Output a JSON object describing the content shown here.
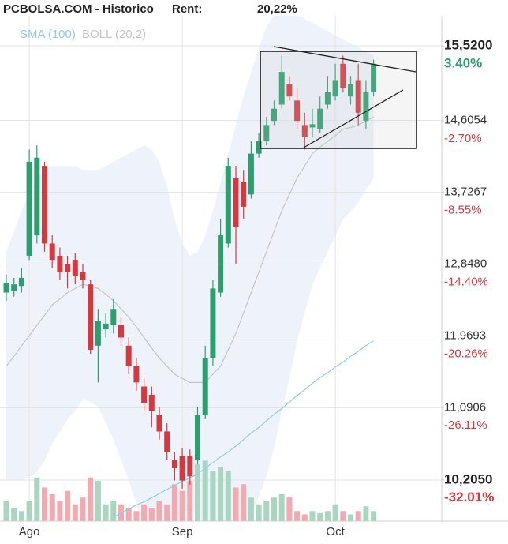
{
  "chart_data": {
    "type": "candlestick",
    "title": "PCBOLSA.COM - Historico",
    "rent_label": "Rent:",
    "rent_value": "20,22%",
    "categories": [
      null,
      null,
      null,
      "Ago",
      null,
      null,
      null,
      null,
      null,
      null,
      null,
      null,
      null,
      null,
      null,
      null,
      null,
      null,
      null,
      null,
      null,
      null,
      null,
      "Sep",
      null,
      null,
      null,
      null,
      null,
      null,
      null,
      null,
      null,
      null,
      null,
      null,
      null,
      null,
      null,
      null,
      null,
      null,
      null,
      "Oct",
      null,
      null,
      null,
      null,
      null
    ],
    "open": [
      12.5,
      12.52,
      12.58,
      12.95,
      13.2,
      14.05,
      13.1,
      12.95,
      12.85,
      12.9,
      12.75,
      12.6,
      11.85,
      12.05,
      12.1,
      12.1,
      11.85,
      11.6,
      11.35,
      11.25,
      11.0,
      10.8,
      10.45,
      10.5,
      10.5,
      10.45,
      11.0,
      11.7,
      12.5,
      13.1,
      13.9,
      13.85,
      13.7,
      14.2,
      14.35,
      14.6,
      14.8,
      15.05,
      14.85,
      14.55,
      14.52,
      14.5,
      14.8,
      14.9,
      15.3,
      14.9,
      15.1,
      14.6,
      14.95
    ],
    "high": [
      12.72,
      12.68,
      12.8,
      14.25,
      14.3,
      14.1,
      13.2,
      13.05,
      12.95,
      12.98,
      12.85,
      12.65,
      12.3,
      12.25,
      12.42,
      12.2,
      11.95,
      11.7,
      11.45,
      11.35,
      11.1,
      10.9,
      10.55,
      10.6,
      10.58,
      11.1,
      11.85,
      12.65,
      13.4,
      14.15,
      14.05,
      14.0,
      14.35,
      14.45,
      14.65,
      14.85,
      15.4,
      15.15,
      15.0,
      14.7,
      14.75,
      14.9,
      15.15,
      15.3,
      15.4,
      15.15,
      15.3,
      15.1,
      15.35
    ],
    "low": [
      12.4,
      12.45,
      12.5,
      12.9,
      13.1,
      13.0,
      12.8,
      12.65,
      12.55,
      12.6,
      12.55,
      11.75,
      11.4,
      11.95,
      12.0,
      11.85,
      11.5,
      11.3,
      11.05,
      10.85,
      10.7,
      10.45,
      10.2,
      10.1,
      10.15,
      10.4,
      10.95,
      11.6,
      12.45,
      13.05,
      12.85,
      13.4,
      13.65,
      14.15,
      14.3,
      14.55,
      14.75,
      14.85,
      14.5,
      14.25,
      14.4,
      14.45,
      14.75,
      14.85,
      14.95,
      14.8,
      14.55,
      14.5,
      14.9
    ],
    "close": [
      12.62,
      12.6,
      12.68,
      14.1,
      14.15,
      13.1,
      12.9,
      12.75,
      12.75,
      12.7,
      12.65,
      11.8,
      12.15,
      12.12,
      12.3,
      11.95,
      11.6,
      11.4,
      11.15,
      11.05,
      10.8,
      10.55,
      10.35,
      10.2,
      10.25,
      11.0,
      11.7,
      12.55,
      13.2,
      14.05,
      13.3,
      13.55,
      14.2,
      14.35,
      14.55,
      14.75,
      15.2,
      14.9,
      14.6,
      14.4,
      14.56,
      14.75,
      14.95,
      15.1,
      15.0,
      15.05,
      14.7,
      14.95,
      15.3
    ],
    "volume": [
      30,
      20,
      15,
      30,
      65,
      50,
      40,
      30,
      45,
      25,
      35,
      65,
      60,
      25,
      30,
      25,
      20,
      15,
      25,
      20,
      30,
      25,
      55,
      45,
      60,
      85,
      90,
      75,
      80,
      75,
      50,
      55,
      35,
      25,
      30,
      35,
      40,
      35,
      15,
      10,
      15,
      12,
      15,
      25,
      15,
      10,
      15,
      22,
      15
    ],
    "up_color": "#2e9e6e",
    "down_color": "#d23a40",
    "up_volume_color": "#a9d5c1",
    "down_volume_color": "#f2aab0",
    "indicators": [
      {
        "name": "SMA (100)",
        "color": "#8fcbee",
        "values": [
          null,
          null,
          null,
          null,
          null,
          null,
          null,
          null,
          null,
          null,
          null,
          null,
          null,
          null,
          9.75,
          9.8,
          9.85,
          9.9,
          9.94,
          9.99,
          10.04,
          10.09,
          10.14,
          10.19,
          10.23,
          10.28,
          10.35,
          10.42,
          10.49,
          10.55,
          10.62,
          10.7,
          10.78,
          10.85,
          10.93,
          11.01,
          11.08,
          11.16,
          11.24,
          11.31,
          11.39,
          11.46,
          11.52,
          11.59,
          11.65,
          11.72,
          11.78,
          11.85,
          11.91
        ]
      },
      {
        "name": "BOLL (20,2)",
        "color": "#c4c4c4",
        "band_color": "#eef3fb",
        "values": [
          11.6,
          11.72,
          11.85,
          11.97,
          12.1,
          12.22,
          12.35,
          12.42,
          12.5,
          12.55,
          12.6,
          12.58,
          12.55,
          12.48,
          12.4,
          12.3,
          12.2,
          12.08,
          11.95,
          11.82,
          11.7,
          11.6,
          11.5,
          11.45,
          11.4,
          11.4,
          11.4,
          11.5,
          11.6,
          11.8,
          12.0,
          12.25,
          12.5,
          12.75,
          13.0,
          13.25,
          13.5,
          13.7,
          13.9,
          14.05,
          14.2,
          14.28,
          14.35,
          14.42,
          14.5,
          14.52,
          14.55,
          14.6,
          14.65
        ],
        "upper": [
          13.0,
          13.25,
          13.5,
          13.7,
          13.9,
          14.0,
          14.05,
          14.05,
          14.05,
          14.05,
          14.0,
          14.0,
          14.0,
          14.05,
          14.1,
          14.15,
          14.2,
          14.25,
          14.3,
          14.25,
          14.1,
          13.8,
          13.4,
          13.1,
          12.95,
          13.0,
          13.2,
          13.5,
          13.85,
          14.2,
          14.55,
          14.9,
          15.2,
          15.5,
          15.75,
          15.9,
          15.95,
          15.95,
          15.9,
          15.85,
          15.8,
          15.75,
          15.7,
          15.65,
          15.6,
          15.55,
          15.5,
          15.45,
          15.4
        ],
        "lower": [
          10.2,
          10.2,
          10.2,
          10.24,
          10.3,
          10.44,
          10.65,
          10.79,
          10.95,
          11.05,
          11.2,
          11.16,
          11.1,
          10.91,
          10.7,
          10.45,
          10.2,
          9.91,
          9.6,
          9.39,
          9.3,
          9.4,
          9.6,
          9.8,
          9.85,
          9.8,
          9.6,
          9.5,
          9.35,
          9.4,
          9.45,
          9.6,
          9.8,
          10.0,
          10.25,
          10.6,
          11.05,
          11.45,
          11.9,
          12.25,
          12.6,
          12.81,
          13.0,
          13.19,
          13.4,
          13.49,
          13.6,
          13.75,
          13.9
        ]
      }
    ],
    "ylim": [
      9.703,
      15.887
    ],
    "yticks": [
      {
        "value": 15.52,
        "label": "15,5200"
      },
      {
        "value": 14.6054,
        "label": "14,6054"
      },
      {
        "value": 13.7267,
        "label": "13,7267"
      },
      {
        "value": 12.848,
        "label": "12,8480"
      },
      {
        "value": 11.9693,
        "label": "11,9693"
      },
      {
        "value": 11.0906,
        "label": "11,0906"
      },
      {
        "value": 10.205,
        "label": "10,2050"
      }
    ],
    "y2lim": [
      -35.38,
      5.86
    ],
    "y2ticks": [
      {
        "value": 3.4,
        "label": "3.40%"
      },
      {
        "value": -2.7,
        "label": "-2.70%"
      },
      {
        "value": -8.55,
        "label": "-8.55%"
      },
      {
        "value": -14.4,
        "label": "-14.40%"
      },
      {
        "value": -20.26,
        "label": "-20.26%"
      },
      {
        "value": -26.11,
        "label": "-26.11%"
      },
      {
        "value": -32.01,
        "label": "-32.01%"
      }
    ],
    "grid": true
  }
}
